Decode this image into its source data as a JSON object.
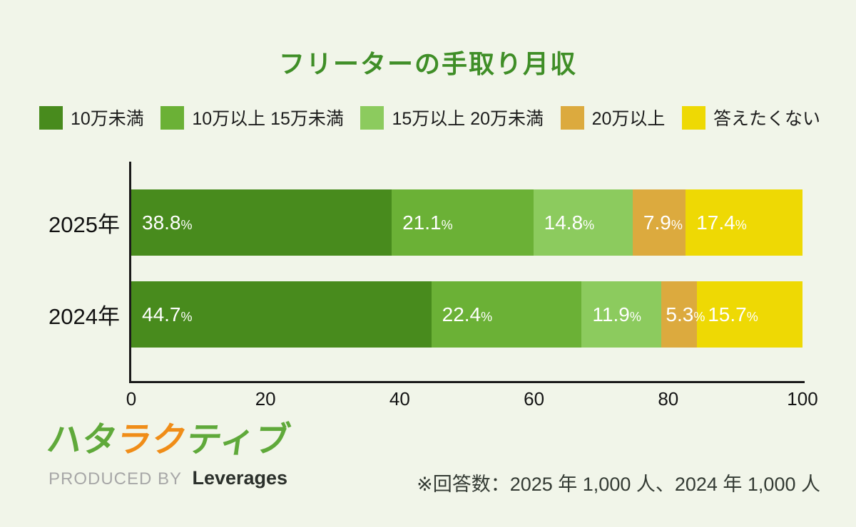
{
  "title": "フリーターの手取り月収",
  "legend": [
    {
      "label": "10万未満",
      "color": "#488b1d"
    },
    {
      "label": "10万以上 15万未満",
      "color": "#6bb136"
    },
    {
      "label": "15万以上 20万未満",
      "color": "#8ccb5e"
    },
    {
      "label": "20万以上",
      "color": "#dcaa3e"
    },
    {
      "label": "答えたくない",
      "color": "#eed904"
    }
  ],
  "chart_data": {
    "type": "bar",
    "stacked": true,
    "orientation": "horizontal",
    "title": "フリーターの手取り月収",
    "categories": [
      "2025年",
      "2024年"
    ],
    "series": [
      {
        "name": "10万未満",
        "color": "#488b1d",
        "values": [
          38.8,
          44.7
        ]
      },
      {
        "name": "10万以上 15万未満",
        "color": "#6bb136",
        "values": [
          21.1,
          22.4
        ]
      },
      {
        "name": "15万以上 20万未満",
        "color": "#8ccb5e",
        "values": [
          14.8,
          11.9
        ]
      },
      {
        "name": "20万以上",
        "color": "#dcaa3e",
        "values": [
          7.9,
          5.3
        ]
      },
      {
        "name": "答えたくない",
        "color": "#eed904",
        "values": [
          17.4,
          15.7
        ]
      }
    ],
    "xlim": [
      0,
      100
    ],
    "x_ticks": [
      0,
      20,
      40,
      60,
      80,
      100
    ],
    "value_suffix": "%",
    "legend_position": "top",
    "grid": false
  },
  "footer": {
    "logo_chars": [
      {
        "ch": "ハ",
        "color": "#5fa93a"
      },
      {
        "ch": "タ",
        "color": "#5fa93a"
      },
      {
        "ch": "ラ",
        "color": "#f08d18"
      },
      {
        "ch": "ク",
        "color": "#f08d18"
      },
      {
        "ch": "テ",
        "color": "#5fa93a"
      },
      {
        "ch": "ィ",
        "color": "#5fa93a"
      },
      {
        "ch": "ブ",
        "color": "#5fa93a"
      }
    ],
    "produced_by": "PRODUCED BY",
    "company": "Leverages",
    "note": "※回答数：2025 年 1,000 人、2024 年 1,000 人"
  }
}
